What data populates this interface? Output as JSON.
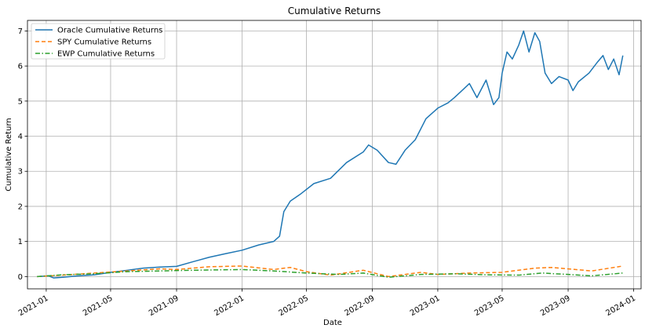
{
  "chart_data": {
    "type": "line",
    "title": "Cumulative Returns",
    "xlabel": "Date",
    "ylabel": "Cumulative Return",
    "xlim": [
      "2020-11-27",
      "2024-01-15"
    ],
    "ylim": [
      -0.35,
      7.3
    ],
    "grid": true,
    "legend_position": "top-left",
    "x_ticks": [
      {
        "date": "2021-01-01",
        "label": "2021-01"
      },
      {
        "date": "2021-05-01",
        "label": "2021-05"
      },
      {
        "date": "2021-09-01",
        "label": "2021-09"
      },
      {
        "date": "2022-01-01",
        "label": "2022-01"
      },
      {
        "date": "2022-05-01",
        "label": "2022-05"
      },
      {
        "date": "2022-09-01",
        "label": "2022-09"
      },
      {
        "date": "2023-01-01",
        "label": "2023-01"
      },
      {
        "date": "2023-05-01",
        "label": "2023-05"
      },
      {
        "date": "2023-09-01",
        "label": "2023-09"
      },
      {
        "date": "2024-01-01",
        "label": "2024-01"
      }
    ],
    "y_ticks": [
      0,
      1,
      2,
      3,
      4,
      5,
      6,
      7
    ],
    "series": [
      {
        "name": "Oracle Cumulative Returns",
        "color": "#1f77b4",
        "dash": "solid",
        "points": [
          [
            "2020-12-15",
            0.0
          ],
          [
            "2021-01-05",
            0.02
          ],
          [
            "2021-01-15",
            -0.04
          ],
          [
            "2021-02-01",
            -0.02
          ],
          [
            "2021-03-01",
            0.02
          ],
          [
            "2021-04-01",
            0.05
          ],
          [
            "2021-05-01",
            0.12
          ],
          [
            "2021-06-01",
            0.18
          ],
          [
            "2021-07-01",
            0.24
          ],
          [
            "2021-08-01",
            0.27
          ],
          [
            "2021-09-01",
            0.29
          ],
          [
            "2021-10-01",
            0.42
          ],
          [
            "2021-11-01",
            0.55
          ],
          [
            "2021-12-01",
            0.65
          ],
          [
            "2022-01-01",
            0.75
          ],
          [
            "2022-02-01",
            0.9
          ],
          [
            "2022-03-01",
            1.0
          ],
          [
            "2022-03-12",
            1.15
          ],
          [
            "2022-03-20",
            1.85
          ],
          [
            "2022-04-01",
            2.15
          ],
          [
            "2022-04-20",
            2.35
          ],
          [
            "2022-05-15",
            2.65
          ],
          [
            "2022-06-15",
            2.8
          ],
          [
            "2022-07-15",
            3.25
          ],
          [
            "2022-08-15",
            3.55
          ],
          [
            "2022-08-25",
            3.75
          ],
          [
            "2022-09-10",
            3.6
          ],
          [
            "2022-10-01",
            3.25
          ],
          [
            "2022-10-15",
            3.2
          ],
          [
            "2022-11-01",
            3.6
          ],
          [
            "2022-11-20",
            3.9
          ],
          [
            "2022-12-10",
            4.5
          ],
          [
            "2023-01-01",
            4.8
          ],
          [
            "2023-01-20",
            4.95
          ],
          [
            "2023-02-01",
            5.1
          ],
          [
            "2023-02-15",
            5.3
          ],
          [
            "2023-03-01",
            5.5
          ],
          [
            "2023-03-15",
            5.1
          ],
          [
            "2023-04-01",
            5.6
          ],
          [
            "2023-04-15",
            4.9
          ],
          [
            "2023-04-25",
            5.1
          ],
          [
            "2023-05-01",
            5.8
          ],
          [
            "2023-05-10",
            6.4
          ],
          [
            "2023-05-20",
            6.2
          ],
          [
            "2023-06-01",
            6.6
          ],
          [
            "2023-06-10",
            7.0
          ],
          [
            "2023-06-20",
            6.4
          ],
          [
            "2023-07-01",
            6.95
          ],
          [
            "2023-07-10",
            6.7
          ],
          [
            "2023-07-20",
            5.8
          ],
          [
            "2023-08-01",
            5.5
          ],
          [
            "2023-08-15",
            5.7
          ],
          [
            "2023-09-01",
            5.6
          ],
          [
            "2023-09-10",
            5.3
          ],
          [
            "2023-09-20",
            5.55
          ],
          [
            "2023-10-10",
            5.8
          ],
          [
            "2023-10-25",
            6.1
          ],
          [
            "2023-11-05",
            6.3
          ],
          [
            "2023-11-15",
            5.9
          ],
          [
            "2023-11-25",
            6.2
          ],
          [
            "2023-12-05",
            5.75
          ],
          [
            "2023-12-12",
            6.3
          ]
        ]
      },
      {
        "name": "SPY Cumulative Returns",
        "color": "#ff7f0e",
        "dash": "dashed",
        "points": [
          [
            "2020-12-15",
            0.0
          ],
          [
            "2021-02-01",
            0.04
          ],
          [
            "2021-04-01",
            0.1
          ],
          [
            "2021-06-01",
            0.16
          ],
          [
            "2021-08-01",
            0.22
          ],
          [
            "2021-09-01",
            0.2
          ],
          [
            "2021-11-01",
            0.28
          ],
          [
            "2022-01-01",
            0.3
          ],
          [
            "2022-03-01",
            0.2
          ],
          [
            "2022-04-01",
            0.26
          ],
          [
            "2022-05-01",
            0.14
          ],
          [
            "2022-06-15",
            0.04
          ],
          [
            "2022-08-15",
            0.18
          ],
          [
            "2022-10-01",
            0.0
          ],
          [
            "2022-12-01",
            0.12
          ],
          [
            "2023-01-01",
            0.06
          ],
          [
            "2023-03-01",
            0.1
          ],
          [
            "2023-05-01",
            0.12
          ],
          [
            "2023-07-01",
            0.24
          ],
          [
            "2023-08-01",
            0.26
          ],
          [
            "2023-10-15",
            0.16
          ],
          [
            "2023-12-12",
            0.3
          ]
        ]
      },
      {
        "name": "EWP Cumulative Returns",
        "color": "#2ca02c",
        "dash": "dashdot",
        "points": [
          [
            "2020-12-15",
            0.0
          ],
          [
            "2021-02-01",
            0.05
          ],
          [
            "2021-04-01",
            0.08
          ],
          [
            "2021-06-01",
            0.14
          ],
          [
            "2021-08-01",
            0.16
          ],
          [
            "2021-10-01",
            0.18
          ],
          [
            "2022-01-01",
            0.2
          ],
          [
            "2022-03-01",
            0.16
          ],
          [
            "2022-05-01",
            0.1
          ],
          [
            "2022-07-01",
            0.06
          ],
          [
            "2022-08-15",
            0.1
          ],
          [
            "2022-10-01",
            -0.02
          ],
          [
            "2022-12-01",
            0.06
          ],
          [
            "2023-02-01",
            0.08
          ],
          [
            "2023-04-01",
            0.05
          ],
          [
            "2023-06-01",
            0.04
          ],
          [
            "2023-07-15",
            0.1
          ],
          [
            "2023-09-01",
            0.06
          ],
          [
            "2023-10-15",
            0.02
          ],
          [
            "2023-12-12",
            0.1
          ]
        ]
      }
    ]
  }
}
